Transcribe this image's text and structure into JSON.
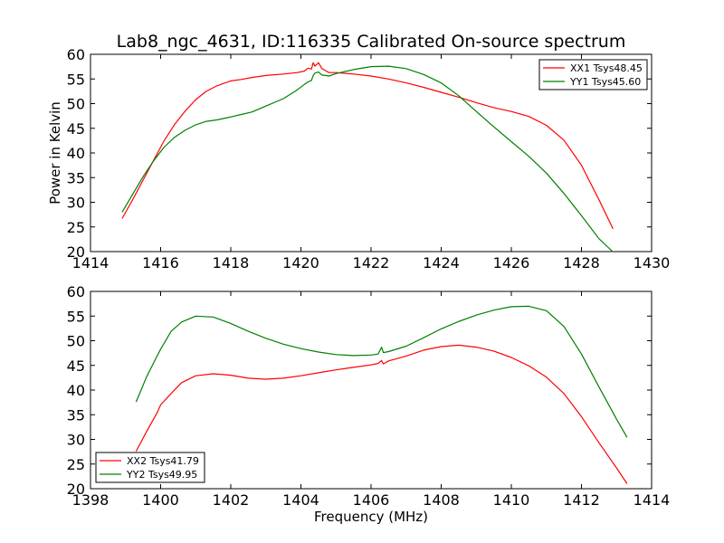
{
  "chart_data": [
    {
      "type": "line",
      "title": "Lab8_ngc_4631, ID:116335 Calibrated On-source spectrum",
      "xlabel": "",
      "ylabel": "Power in Kelvin",
      "xlim": [
        1414,
        1430
      ],
      "ylim": [
        20,
        60
      ],
      "xticks": [
        1414,
        1416,
        1418,
        1420,
        1422,
        1424,
        1426,
        1428,
        1430
      ],
      "yticks": [
        20,
        25,
        30,
        35,
        40,
        45,
        50,
        55,
        60
      ],
      "grid": false,
      "legend_position": "upper right",
      "series": [
        {
          "name": "XX1 Tsys48.45",
          "color": "#ff0000",
          "x": [
            1414.9,
            1415.2,
            1415.5,
            1415.8,
            1416.1,
            1416.4,
            1416.7,
            1417.0,
            1417.3,
            1417.6,
            1418.0,
            1418.3,
            1418.6,
            1419.0,
            1419.5,
            1419.9,
            1420.1,
            1420.2,
            1420.3,
            1420.35,
            1420.4,
            1420.5,
            1420.6,
            1420.7,
            1420.8,
            1421.0,
            1421.5,
            1422.0,
            1422.5,
            1423.0,
            1423.5,
            1424.0,
            1424.5,
            1425.0,
            1425.5,
            1426.0,
            1426.5,
            1427.0,
            1427.5,
            1428.0,
            1428.5,
            1428.9
          ],
          "y": [
            26.7,
            30.5,
            34.5,
            38.5,
            42.5,
            45.8,
            48.5,
            50.8,
            52.5,
            53.6,
            54.6,
            54.9,
            55.3,
            55.7,
            56.0,
            56.3,
            56.6,
            57.2,
            57.0,
            58.3,
            57.6,
            58.3,
            57.1,
            56.7,
            56.3,
            56.3,
            56.0,
            55.6,
            55.0,
            54.2,
            53.3,
            52.3,
            51.3,
            50.2,
            49.2,
            48.4,
            47.4,
            45.6,
            42.6,
            37.5,
            30.5,
            24.6
          ]
        },
        {
          "name": "YY1 Tsys45.60",
          "color": "#008000",
          "x": [
            1414.9,
            1415.2,
            1415.5,
            1415.8,
            1416.1,
            1416.4,
            1416.7,
            1417.0,
            1417.3,
            1417.6,
            1418.0,
            1418.3,
            1418.6,
            1419.0,
            1419.5,
            1419.9,
            1420.1,
            1420.2,
            1420.3,
            1420.35,
            1420.4,
            1420.5,
            1420.6,
            1420.7,
            1420.8,
            1421.0,
            1421.5,
            1422.0,
            1422.5,
            1423.0,
            1423.5,
            1424.0,
            1424.5,
            1425.0,
            1425.5,
            1426.0,
            1426.5,
            1427.0,
            1427.5,
            1428.0,
            1428.5,
            1428.9
          ],
          "y": [
            28.0,
            31.6,
            35.2,
            38.4,
            41.2,
            43.2,
            44.6,
            45.7,
            46.4,
            46.7,
            47.3,
            47.8,
            48.3,
            49.5,
            51.0,
            52.8,
            53.9,
            54.4,
            54.7,
            55.7,
            56.2,
            56.4,
            55.8,
            55.7,
            55.6,
            56.1,
            56.9,
            57.5,
            57.6,
            57.1,
            55.9,
            54.2,
            51.6,
            48.4,
            45.3,
            42.3,
            39.3,
            35.9,
            31.8,
            27.3,
            22.6,
            19.9
          ]
        }
      ]
    },
    {
      "type": "line",
      "title": "",
      "xlabel": "Frequency (MHz)",
      "ylabel": "",
      "xlim": [
        1398,
        1414
      ],
      "ylim": [
        20,
        60
      ],
      "xticks": [
        1398,
        1400,
        1402,
        1404,
        1406,
        1408,
        1410,
        1412,
        1414
      ],
      "yticks": [
        20,
        25,
        30,
        35,
        40,
        45,
        50,
        55,
        60
      ],
      "grid": false,
      "legend_position": "lower left",
      "series": [
        {
          "name": "XX2 Tsys41.79",
          "color": "#ff0000",
          "x": [
            1399.3,
            1399.6,
            1399.9,
            1400.0,
            1400.3,
            1400.6,
            1401.0,
            1401.5,
            1402.0,
            1402.5,
            1403.0,
            1403.5,
            1404.0,
            1404.5,
            1405.0,
            1405.5,
            1406.0,
            1406.2,
            1406.3,
            1406.35,
            1406.5,
            1407.0,
            1407.5,
            1408.0,
            1408.5,
            1409.0,
            1409.5,
            1410.0,
            1410.5,
            1411.0,
            1411.5,
            1412.0,
            1412.5,
            1413.0,
            1413.3
          ],
          "y": [
            27.6,
            31.6,
            35.4,
            37.0,
            39.3,
            41.5,
            42.9,
            43.3,
            43.0,
            42.4,
            42.2,
            42.4,
            42.9,
            43.5,
            44.1,
            44.6,
            45.1,
            45.4,
            46.0,
            45.3,
            45.9,
            46.9,
            48.1,
            48.8,
            49.1,
            48.7,
            47.9,
            46.6,
            44.9,
            42.6,
            39.3,
            34.6,
            29.3,
            24.2,
            21.0
          ]
        },
        {
          "name": "YY2 Tsys49.95",
          "color": "#008000",
          "x": [
            1399.3,
            1399.6,
            1399.9,
            1400.0,
            1400.3,
            1400.6,
            1401.0,
            1401.5,
            1402.0,
            1402.5,
            1403.0,
            1403.5,
            1404.0,
            1404.5,
            1405.0,
            1405.5,
            1406.0,
            1406.2,
            1406.3,
            1406.35,
            1406.5,
            1407.0,
            1407.5,
            1408.0,
            1408.5,
            1409.0,
            1409.5,
            1410.0,
            1410.5,
            1411.0,
            1411.5,
            1412.0,
            1412.5,
            1413.0,
            1413.3
          ],
          "y": [
            37.6,
            42.7,
            46.9,
            48.3,
            51.9,
            53.8,
            55.0,
            54.8,
            53.5,
            51.9,
            50.5,
            49.3,
            48.4,
            47.7,
            47.2,
            47.0,
            47.1,
            47.3,
            48.7,
            47.6,
            47.8,
            48.9,
            50.6,
            52.4,
            53.9,
            55.2,
            56.2,
            56.9,
            57.0,
            56.1,
            52.9,
            47.3,
            40.6,
            34.1,
            30.4
          ]
        }
      ]
    }
  ]
}
